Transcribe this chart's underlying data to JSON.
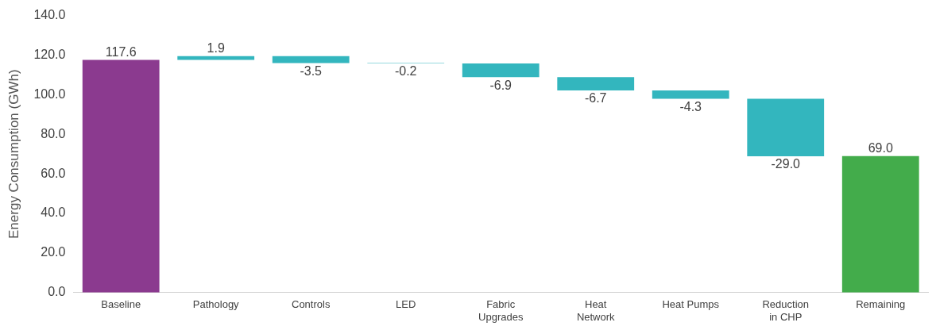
{
  "chart_data": {
    "type": "bar",
    "ylabel": "Energy Consumption (GWh)",
    "categories": [
      "Baseline",
      "Pathology",
      "Controls",
      "LED",
      "Fabric Upgrades",
      "Heat Network",
      "Heat Pumps",
      "Reduction in CHP",
      "Remaining"
    ],
    "values": [
      117.6,
      1.9,
      -3.5,
      -0.2,
      -6.9,
      -6.7,
      -4.3,
      -29.0,
      69.0
    ],
    "base": [
      0,
      117.6,
      119.5,
      116.0,
      115.8,
      108.9,
      102.2,
      97.9,
      0
    ],
    "colors": [
      "#8b3a8f",
      "#33b6be",
      "#33b6be",
      "#33b6be",
      "#33b6be",
      "#33b6be",
      "#33b6be",
      "#33b6be",
      "#43ac4b"
    ],
    "value_labels": [
      "117.6",
      "1.9",
      "-3.5",
      "-0.2",
      "-6.9",
      "-6.7",
      "-4.3",
      "-29.0",
      "69.0"
    ],
    "ylim": [
      0,
      140
    ],
    "yticks": [
      {
        "value": 0,
        "label": "0.0"
      },
      {
        "value": 20,
        "label": "20.0"
      },
      {
        "value": 40,
        "label": "40.0"
      },
      {
        "value": 60,
        "label": "60.0"
      },
      {
        "value": 80,
        "label": "80.0"
      },
      {
        "value": 100,
        "label": "100.0"
      },
      {
        "value": 120,
        "label": "120.0"
      },
      {
        "value": 140,
        "label": "140.0"
      }
    ],
    "grid": false,
    "legend": false
  }
}
